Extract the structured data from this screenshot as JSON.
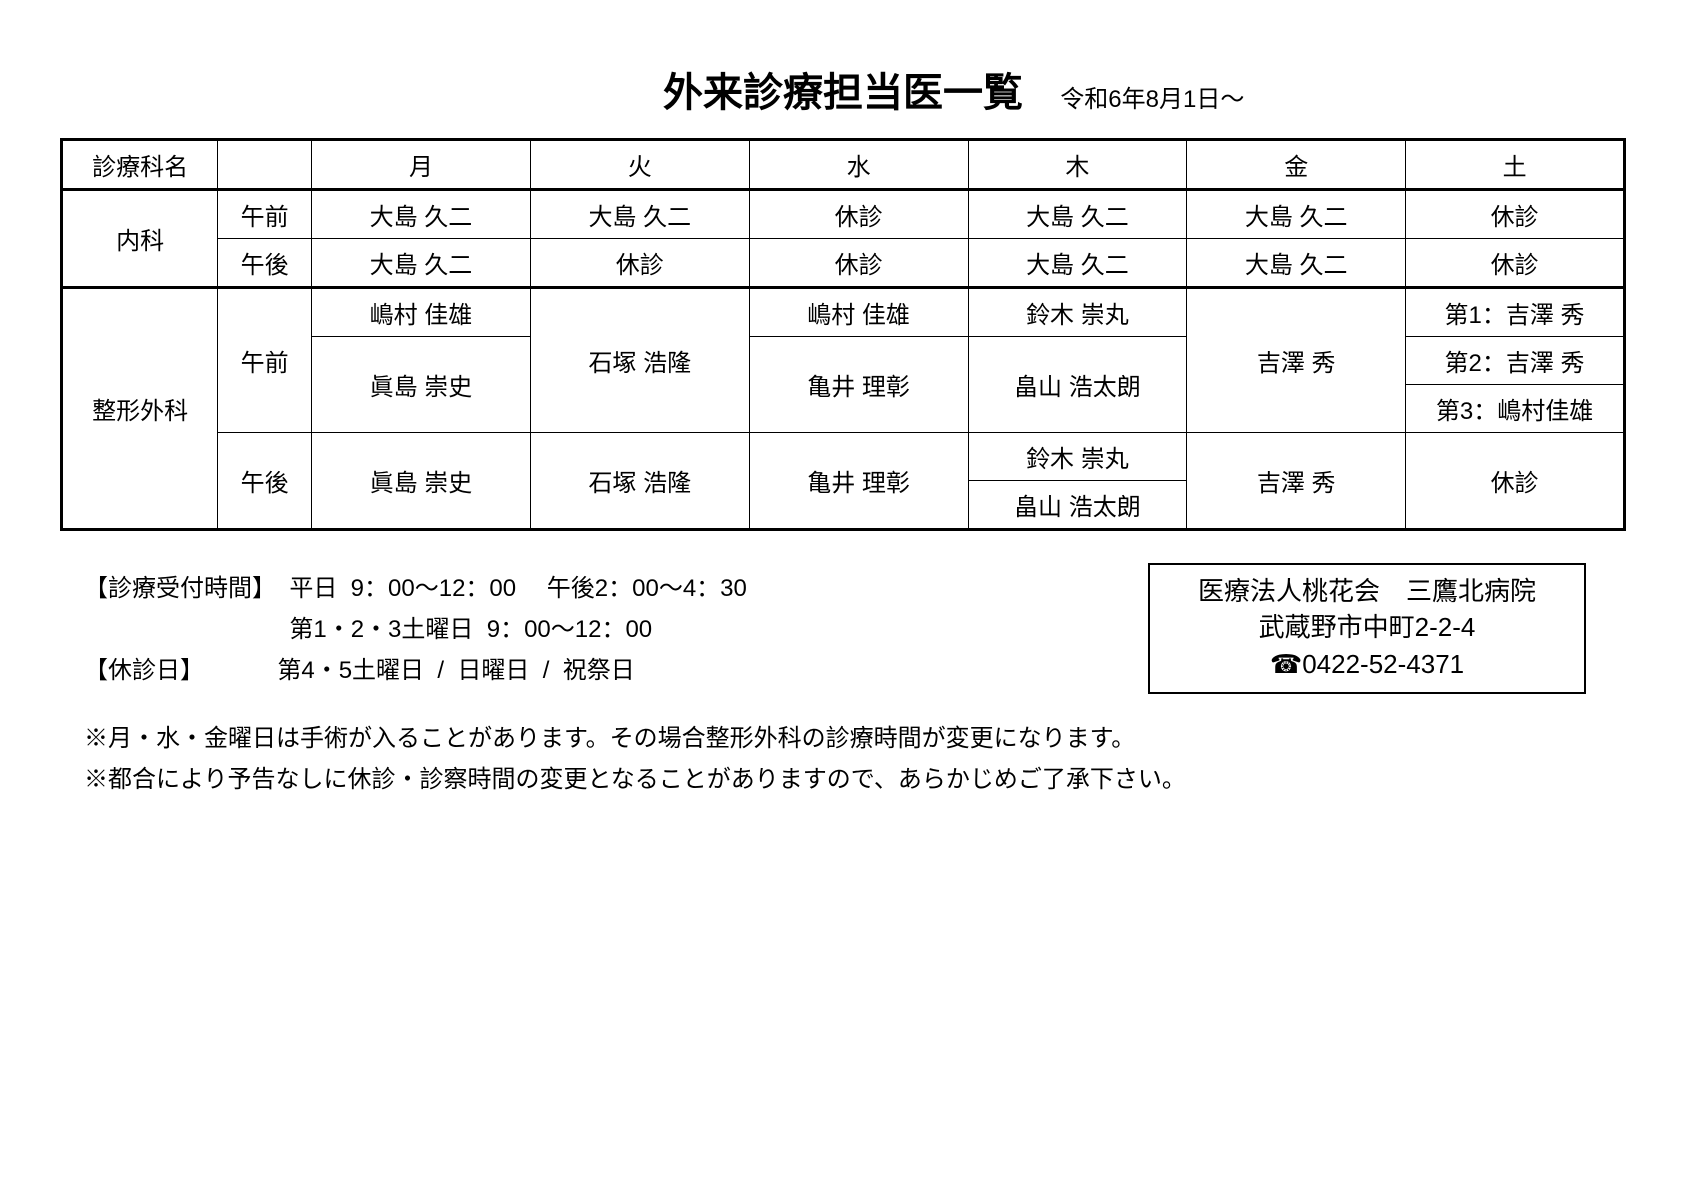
{
  "title": "外来診療担当医一覧",
  "effective_date": "令和6年8月1日～",
  "header": {
    "dept": "診療科名",
    "period_blank": "",
    "days": [
      "月",
      "火",
      "水",
      "木",
      "金",
      "土"
    ]
  },
  "internal": {
    "dept": "内科",
    "am_label": "午前",
    "pm_label": "午後",
    "am": [
      "大島  久二",
      "大島  久二",
      "休診",
      "大島  久二",
      "大島  久二",
      "休診"
    ],
    "pm": [
      "大島  久二",
      "休診",
      "休診",
      "大島  久二",
      "大島  久二",
      "休診"
    ]
  },
  "ortho": {
    "dept": "整形外科",
    "am_label": "午前",
    "pm_label": "午後",
    "am": {
      "mon_top": "嶋村  佳雄",
      "mon_bot": "眞島  崇史",
      "tue": "石塚  浩隆",
      "wed_top": "嶋村  佳雄",
      "wed_bot": "亀井  理彰",
      "thu_top": "鈴木  崇丸",
      "thu_bot": "畠山  浩太朗",
      "fri": "吉澤  秀",
      "sat1": "第1：吉澤  秀",
      "sat2": "第2：吉澤  秀",
      "sat3": "第3：嶋村佳雄"
    },
    "pm": {
      "mon": "眞島  崇史",
      "tue": "石塚  浩隆",
      "wed": "亀井  理彰",
      "thu_top": "鈴木  崇丸",
      "thu_bot": "畠山  浩太朗",
      "fri": "吉澤  秀",
      "sat": "休診"
    }
  },
  "info": {
    "reception_label": "【診療受付時間】",
    "reception_line1": "平日  9：00～12：00　 午後2：00～4：30",
    "reception_line2": "第1・2・3土曜日  9：00～12：00",
    "closed_label": "【休診日】",
    "closed_value": "第4・5土曜日  /  日曜日  /  祝祭日"
  },
  "hospital": {
    "line1": "医療法人桃花会　三鷹北病院",
    "line2": "武蔵野市中町2-2-4",
    "line3": "☎0422-52-4371"
  },
  "notes": {
    "n1": "※月・水・金曜日は手術が入ることがあります。その場合整形外科の診療時間が変更になります。",
    "n2": "※都合により予告なしに休診・診察時間の変更となることがありますので、あらかじめご了承下さい。"
  }
}
